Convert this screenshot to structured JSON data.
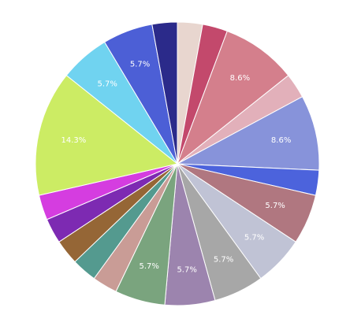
{
  "chart_data": {
    "type": "pie",
    "title": "",
    "start": "12 o'clock",
    "direction": "clockwise",
    "label_format": "percent, one decimal, shown on larger slices",
    "slices": [
      {
        "value": 2.86,
        "color": "#e8d6cf",
        "label": ""
      },
      {
        "value": 2.86,
        "color": "#c3496c",
        "label": ""
      },
      {
        "value": 8.57,
        "color": "#d47f8c",
        "label": "8.6%"
      },
      {
        "value": 2.86,
        "color": "#e2b0ba",
        "label": ""
      },
      {
        "value": 8.57,
        "color": "#8793da",
        "label": "8.6%"
      },
      {
        "value": 2.86,
        "color": "#4c63dc",
        "label": ""
      },
      {
        "value": 5.71,
        "color": "#b07780",
        "label": "5.7%"
      },
      {
        "value": 5.71,
        "color": "#c0c3d5",
        "label": "5.7%"
      },
      {
        "value": 5.71,
        "color": "#a7a7a7",
        "label": "5.7%"
      },
      {
        "value": 5.71,
        "color": "#9c84ae",
        "label": "5.7%"
      },
      {
        "value": 5.71,
        "color": "#7aa47e",
        "label": "5.7%"
      },
      {
        "value": 2.86,
        "color": "#c99c96",
        "label": ""
      },
      {
        "value": 2.86,
        "color": "#549a8f",
        "label": ""
      },
      {
        "value": 2.86,
        "color": "#956636",
        "label": ""
      },
      {
        "value": 2.86,
        "color": "#7d2ab2",
        "label": ""
      },
      {
        "value": 2.86,
        "color": "#d53de0",
        "label": ""
      },
      {
        "value": 14.29,
        "color": "#ccec64",
        "label": "14.3%"
      },
      {
        "value": 5.71,
        "color": "#70d3f0",
        "label": "5.7%"
      },
      {
        "value": 5.71,
        "color": "#4c5fd6",
        "label": "5.7%"
      },
      {
        "value": 2.86,
        "color": "#2b2a8a",
        "label": ""
      }
    ]
  }
}
